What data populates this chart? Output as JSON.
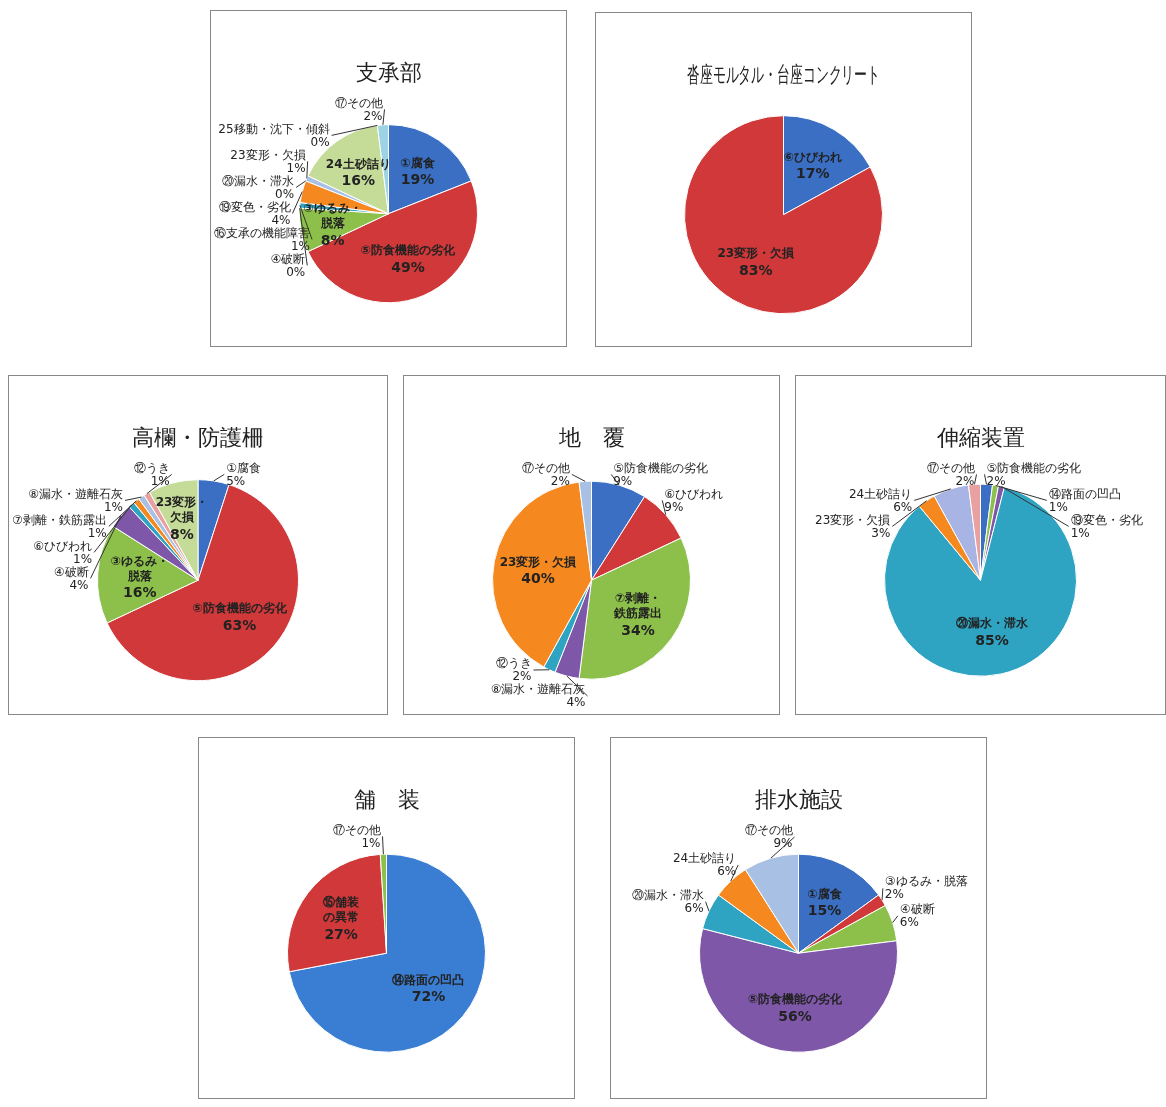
{
  "chart_data": [
    {
      "type": "pie",
      "title": "支承部",
      "categories": [
        "①腐食",
        "⑤防食機能の劣化",
        "③ゆるみ・脱落",
        "④破断",
        "⑯支承の機能障害",
        "⑲変色・劣化",
        "⑳漏水・滞水",
        "23変形・欠損",
        "24土砂詰り",
        "25移動・沈下・傾斜",
        "⑰その他"
      ],
      "values": [
        19,
        49,
        8,
        0,
        1,
        4,
        0,
        1,
        16,
        0,
        2
      ],
      "colors": [
        "#3a6fc4",
        "#d0383a",
        "#8cc04a",
        "#7e57a8",
        "#2ea3c2",
        "#f5891f",
        "#e8a0a0",
        "#a8c0e4",
        "#c4dc98",
        "#b8a8d0",
        "#9cd4e4"
      ],
      "value_labels": [
        "19%",
        "49%",
        "8%",
        "0%",
        "1%",
        "4%",
        "0%",
        "1%",
        "16%",
        "0%",
        "2%"
      ]
    },
    {
      "type": "pie",
      "title": "沓座モルタル・台座コンクリート",
      "categories": [
        "⑥ひびわれ",
        "23変形・欠損"
      ],
      "values": [
        17,
        83
      ],
      "colors": [
        "#3a6fc4",
        "#d0383a"
      ],
      "value_labels": [
        "17%",
        "83%"
      ]
    },
    {
      "type": "pie",
      "title": "高欄・防護柵",
      "categories": [
        "①腐食",
        "⑤防食機能の劣化",
        "③ゆるみ・脱落",
        "④破断",
        "⑥ひびわれ",
        "⑦剥離・鉄筋露出",
        "⑧漏水・遊離石灰",
        "⑫うき",
        "23変形・欠損"
      ],
      "values": [
        5,
        63,
        16,
        4,
        1,
        1,
        1,
        1,
        8
      ],
      "colors": [
        "#3a6fc4",
        "#d0383a",
        "#8cc04a",
        "#7e57a8",
        "#2ea3c2",
        "#f5891f",
        "#a8c0e4",
        "#e8a0a0",
        "#c4dc98"
      ],
      "value_labels": [
        "5%",
        "63%",
        "16%",
        "4%",
        "1%",
        "1%",
        "1%",
        "1%",
        "8%"
      ]
    },
    {
      "type": "pie",
      "title": "地　覆",
      "categories": [
        "⑤防食機能の劣化",
        "⑥ひびわれ",
        "⑦剥離・鉄筋露出",
        "⑧漏水・遊離石灰",
        "⑫うき",
        "23変形・欠損",
        "⑰その他"
      ],
      "values": [
        9,
        9,
        34,
        4,
        2,
        40,
        2
      ],
      "colors": [
        "#3a6fc4",
        "#d0383a",
        "#8cc04a",
        "#7e57a8",
        "#2ea3c2",
        "#f5891f",
        "#a8c0e4"
      ],
      "value_labels": [
        "9%",
        "9%",
        "34%",
        "4%",
        "2%",
        "40%",
        "2%"
      ]
    },
    {
      "type": "pie",
      "title": "伸縮装置",
      "categories": [
        "⑤防食機能の劣化",
        "⑭路面の凹凸",
        "⑲変色・劣化",
        "⑳漏水・滞水",
        "23変形・欠損",
        "24土砂詰り",
        "⑰その他"
      ],
      "values": [
        2,
        1,
        1,
        85,
        3,
        6,
        2
      ],
      "colors": [
        "#3a6fc4",
        "#8cc04a",
        "#7e57a8",
        "#2ea3c2",
        "#f5891f",
        "#a8b4e4",
        "#e8a0a0"
      ],
      "value_labels": [
        "2%",
        "1%",
        "1%",
        "85%",
        "3%",
        "6%",
        "2%"
      ]
    },
    {
      "type": "pie",
      "title": "舗　装",
      "categories": [
        "⑭路面の凹凸",
        "⑮舗装の異常",
        "⑰その他"
      ],
      "values": [
        72,
        27,
        1
      ],
      "colors": [
        "#3a7ed4",
        "#d0383a",
        "#8cc04a"
      ],
      "value_labels": [
        "72%",
        "27%",
        "1%"
      ]
    },
    {
      "type": "pie",
      "title": "排水施設",
      "categories": [
        "①腐食",
        "③ゆるみ・脱落",
        "④破断",
        "⑤防食機能の劣化",
        "⑳漏水・滞水",
        "24土砂詰り",
        "⑰その他"
      ],
      "values": [
        15,
        2,
        6,
        56,
        6,
        6,
        9
      ],
      "colors": [
        "#3a6fc4",
        "#d0383a",
        "#8cc04a",
        "#7e57a8",
        "#2ea3c2",
        "#f5891f",
        "#a8c0e4"
      ],
      "value_labels": [
        "15%",
        "2%",
        "6%",
        "56%",
        "6%",
        "6%",
        "9%"
      ]
    }
  ]
}
